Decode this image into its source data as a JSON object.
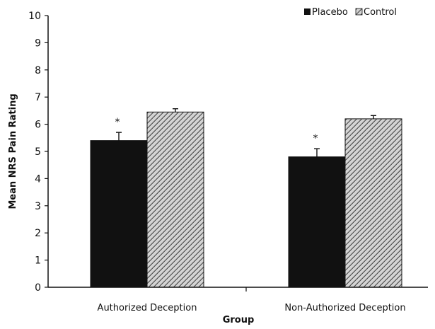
{
  "chart_data": {
    "type": "bar",
    "title": "",
    "xlabel": "Group",
    "ylabel": "Mean NRS Pain Rating",
    "ylim": [
      0,
      10
    ],
    "yticks": [
      0,
      1,
      2,
      3,
      4,
      5,
      6,
      7,
      8,
      9,
      10
    ],
    "categories": [
      "Authorized Deception",
      "Non-Authorized Deception"
    ],
    "series": [
      {
        "name": "Placebo",
        "values": [
          5.4,
          4.8
        ],
        "error": [
          0.3,
          0.3
        ],
        "annotations": [
          "*",
          "*"
        ],
        "color": "#111111",
        "pattern": "solid"
      },
      {
        "name": "Control",
        "values": [
          6.45,
          6.2
        ],
        "error": [
          0.12,
          0.12
        ],
        "annotations": [
          "",
          ""
        ],
        "color": "#9a9a9a",
        "pattern": "diagonal-hatch"
      }
    ],
    "legend": {
      "position": "top-right"
    },
    "grid": false
  }
}
